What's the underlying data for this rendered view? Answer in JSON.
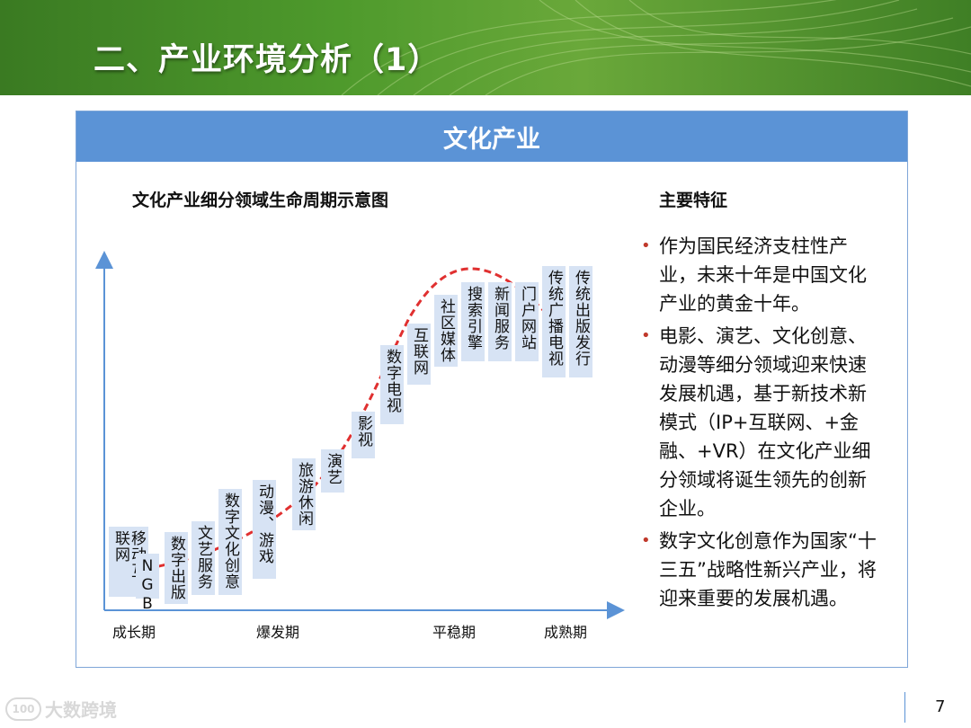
{
  "header": {
    "title": "二、产业环境分析（1）"
  },
  "card": {
    "banner": "文化产业",
    "diagram_title": "文化产业细分领域生命周期示意图",
    "features_title": "主要特征"
  },
  "diagram": {
    "curve_color": "#e03030",
    "axis_color": "#5b93d6",
    "box_color": "#d7e3f4",
    "stages": [
      {
        "label": "移动互联网"
      },
      {
        "label": "NGB"
      },
      {
        "label": "数字出版"
      },
      {
        "label": "文艺服务"
      },
      {
        "label": "数字文化创意"
      },
      {
        "label": "动漫、游戏"
      },
      {
        "label": "旅游休闲"
      },
      {
        "label": "演艺"
      },
      {
        "label": "影视"
      },
      {
        "label": "数字电视"
      },
      {
        "label": "互联网"
      },
      {
        "label": "社区媒体"
      },
      {
        "label": "搜索引擎"
      },
      {
        "label": "新闻服务"
      },
      {
        "label": "门户网站"
      },
      {
        "label": "传统广播电视"
      },
      {
        "label": "传统出版发行"
      }
    ],
    "phases": [
      "成长期",
      "爆发期",
      "平稳期",
      "成熟期"
    ]
  },
  "features": [
    "作为国民经济支柱性产业，未来十年是中国文化产业的黄金十年。",
    "电影、演艺、文化创意、动漫等细分领域迎来快速发展机遇，基于新技术新模式（IP+互联网、+金融、+VR）在文化产业细分领域将诞生领先的创新企业。",
    "数字文化创意作为国家“十三五”战略性新兴产业，将迎来重要的发展机遇。"
  ],
  "footer": {
    "logo_mark": "100",
    "logo_text": "大数跨境",
    "page_number": "7"
  }
}
